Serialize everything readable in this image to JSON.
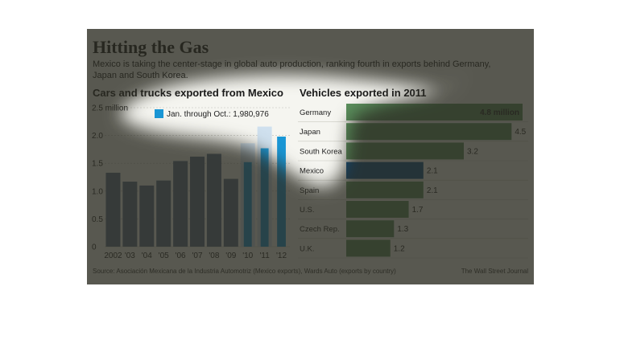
{
  "title": "Hitting the Gas",
  "subtitle_line1": "Mexico is taking the center-stage in global auto production, ranking fourth in exports behind Germany,",
  "subtitle_line2": "Japan and South Korea.",
  "source": "Source:  Asociación Mexicana de la Industria Automotriz (Mexico exports), Wards Auto (exports by country)",
  "credit": "The Wall Street Journal",
  "colors": {
    "bar_dark": "#5b6f8a",
    "bar_light": "#cfe0ee",
    "bar_highlight": "#1a97d6",
    "hbar_green": "#5a8f5c",
    "hbar_mexico": "#0a4f86",
    "hbar_top_label": "#ffffff"
  },
  "chart_data": [
    {
      "type": "bar",
      "title": "Cars and trucks exported from Mexico",
      "categories": [
        "2002",
        "'03",
        "'04",
        "'05",
        "'06",
        "'07",
        "'08",
        "'09",
        "'10",
        "'11",
        "'12"
      ],
      "series": [
        {
          "values": [
            1.33,
            1.17,
            1.1,
            1.19,
            1.54,
            1.62,
            1.67,
            1.22,
            1.86,
            2.16,
            null
          ]
        },
        {
          "name": "Jan. through Oct.: 1,980,976",
          "values": [
            null,
            null,
            null,
            null,
            null,
            null,
            null,
            null,
            1.52,
            1.77,
            1.98
          ]
        }
      ],
      "ylim": [
        0,
        2.5
      ],
      "ytick_labels": [
        "0",
        "0.5",
        "1.0",
        "1.5",
        "2.0",
        "2.5 million"
      ],
      "yticks": [
        0,
        0.5,
        1.0,
        1.5,
        2.0,
        2.5
      ],
      "grid": true,
      "legend_label": "Jan. through Oct.: 1,980,976"
    },
    {
      "type": "bar",
      "orientation": "horizontal",
      "title": "Vehicles exported in 2011",
      "categories": [
        "Germany",
        "Japan",
        "South Korea",
        "Mexico",
        "Spain",
        "U.S.",
        "Czech Rep.",
        "U.K."
      ],
      "values": [
        4.8,
        4.5,
        3.2,
        2.1,
        2.1,
        1.7,
        1.3,
        1.2
      ],
      "value_labels": [
        "4.8 million",
        "4.5",
        "3.2",
        "2.1",
        "2.1",
        "1.7",
        "1.3",
        "1.2"
      ],
      "highlight": "Mexico"
    }
  ]
}
